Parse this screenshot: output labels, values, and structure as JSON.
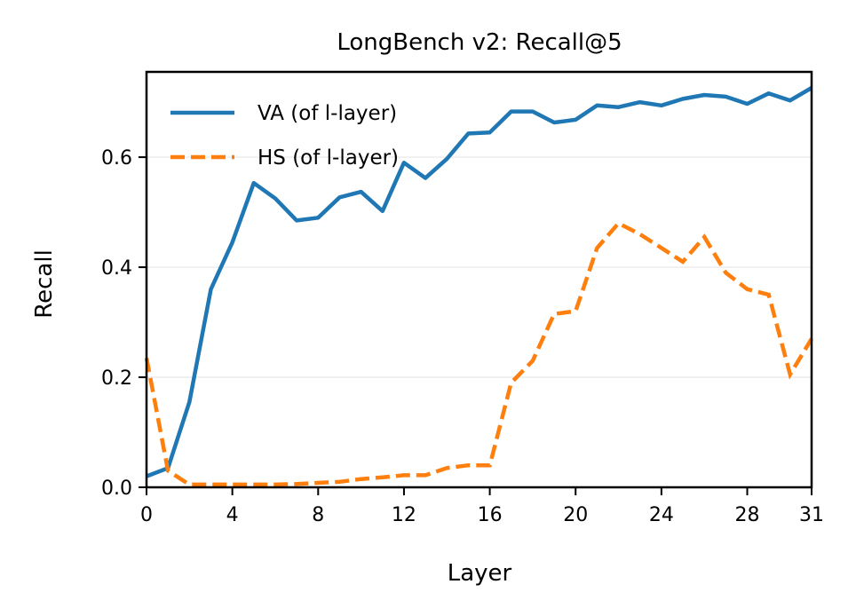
{
  "chart_data": {
    "type": "line",
    "title": "LongBench v2: Recall@5",
    "xlabel": "Layer",
    "ylabel": "Recall",
    "xlim": [
      0,
      31
    ],
    "ylim": [
      0,
      0.755
    ],
    "xticks": [
      0,
      4,
      8,
      12,
      16,
      20,
      24,
      28,
      31
    ],
    "yticks": [
      0.0,
      0.2,
      0.4,
      0.6
    ],
    "ytick_labels": [
      "0.0",
      "0.2",
      "0.4",
      "0.6"
    ],
    "grid": "horizontal",
    "legend_position": "top-left",
    "x": [
      0,
      1,
      2,
      3,
      4,
      5,
      6,
      7,
      8,
      9,
      10,
      11,
      12,
      13,
      14,
      15,
      16,
      17,
      18,
      19,
      20,
      21,
      22,
      23,
      24,
      25,
      26,
      27,
      28,
      29,
      30,
      31
    ],
    "series": [
      {
        "name": "VA (of l-layer)",
        "color": "#1f77b4",
        "style": "solid",
        "values": [
          0.02,
          0.035,
          0.155,
          0.36,
          0.445,
          0.553,
          0.525,
          0.485,
          0.49,
          0.527,
          0.537,
          0.502,
          0.59,
          0.562,
          0.597,
          0.643,
          0.645,
          0.683,
          0.683,
          0.663,
          0.668,
          0.694,
          0.691,
          0.7,
          0.694,
          0.706,
          0.713,
          0.71,
          0.697,
          0.716,
          0.703,
          0.726
        ]
      },
      {
        "name": "HS (of l-layer)",
        "color": "#ff7f0e",
        "style": "dashed",
        "values": [
          0.235,
          0.03,
          0.005,
          0.005,
          0.005,
          0.005,
          0.005,
          0.006,
          0.008,
          0.01,
          0.015,
          0.018,
          0.022,
          0.022,
          0.035,
          0.04,
          0.04,
          0.19,
          0.23,
          0.315,
          0.32,
          0.435,
          0.48,
          0.46,
          0.435,
          0.41,
          0.455,
          0.39,
          0.36,
          0.35,
          0.205,
          0.27
        ]
      }
    ]
  }
}
